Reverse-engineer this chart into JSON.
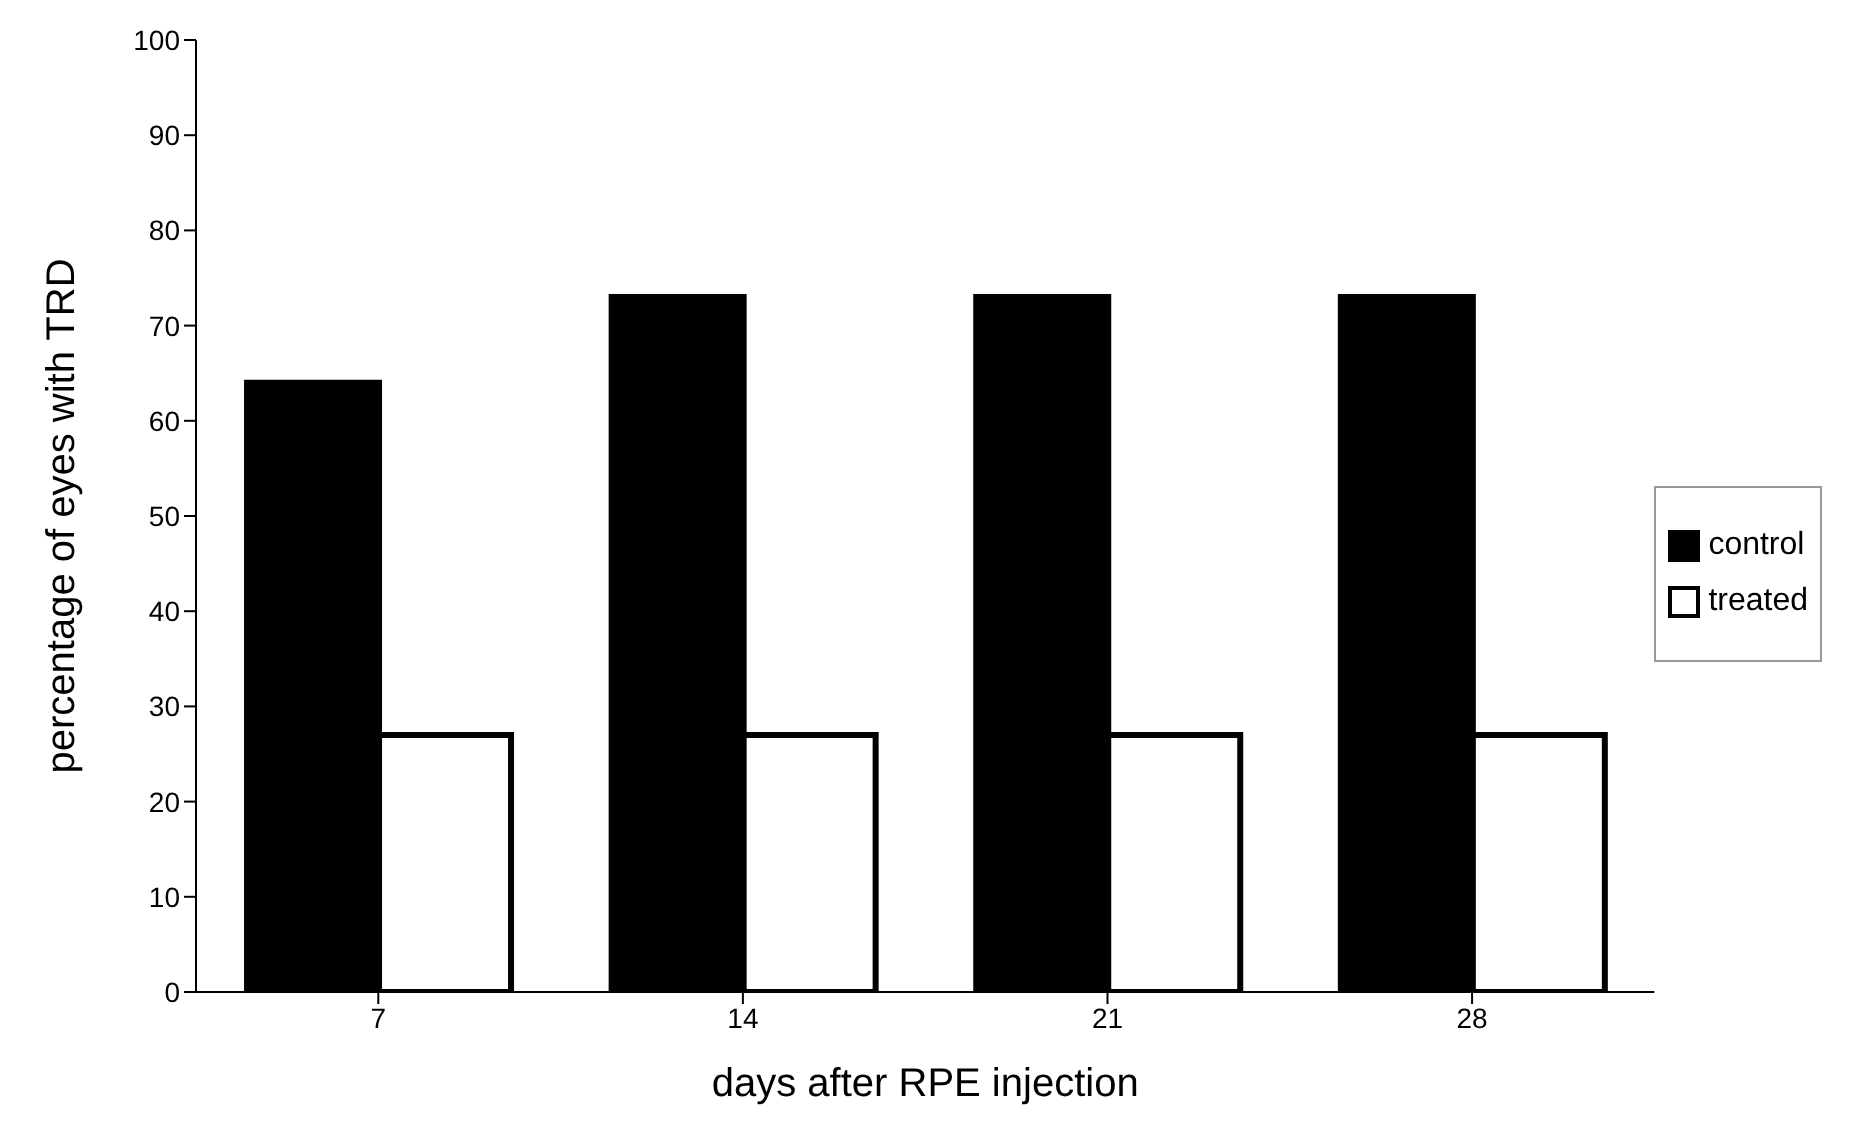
{
  "chart_data": {
    "type": "bar",
    "xlabel": "days after RPE injection",
    "ylabel": "percentage of eyes with TRD",
    "categories": [
      "7",
      "14",
      "21",
      "28"
    ],
    "series": [
      {
        "name": "control",
        "color": "#000000",
        "values": [
          64,
          73,
          73,
          73
        ]
      },
      {
        "name": "treated",
        "color": "#ffffff",
        "values": [
          27,
          27,
          27,
          27
        ]
      }
    ],
    "ylim": [
      0,
      100
    ],
    "yticks": [
      0,
      10,
      20,
      30,
      40,
      50,
      60,
      70,
      80,
      90,
      100
    ],
    "grid": false,
    "legend": "right"
  }
}
